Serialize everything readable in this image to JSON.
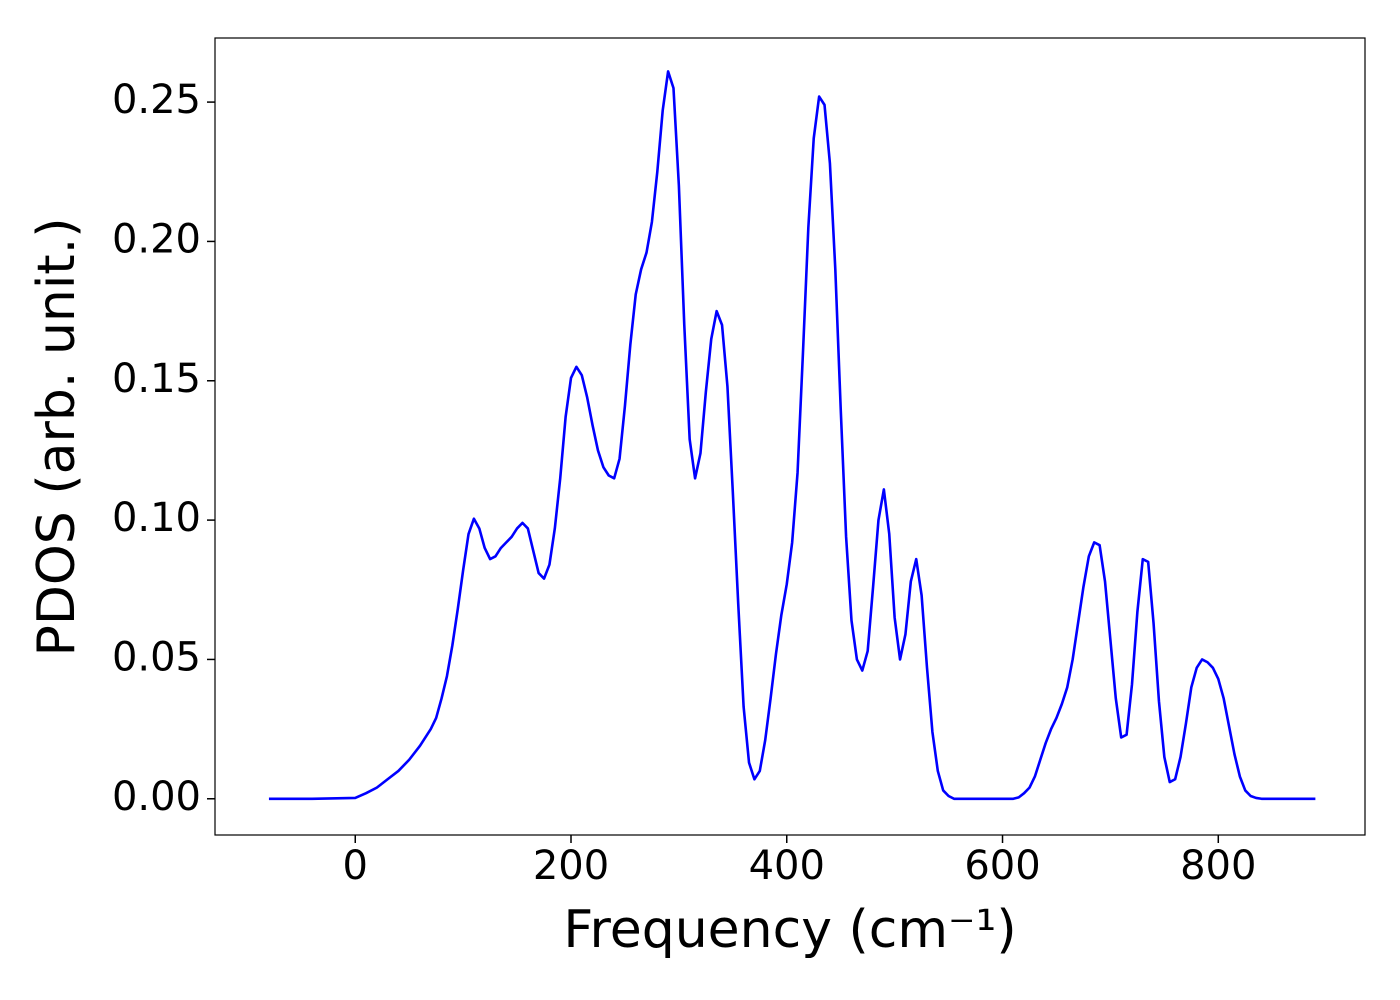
{
  "chart_data": {
    "type": "line",
    "x_label": "Frequency (cm⁻¹)",
    "y_label": "PDOS (arb. unit.)",
    "x": [
      -80,
      -40,
      0,
      10,
      20,
      30,
      40,
      50,
      60,
      70,
      75,
      80,
      85,
      90,
      95,
      100,
      105,
      110,
      115,
      120,
      125,
      130,
      135,
      140,
      145,
      150,
      155,
      160,
      165,
      170,
      175,
      180,
      185,
      190,
      195,
      200,
      205,
      210,
      215,
      220,
      225,
      230,
      235,
      240,
      245,
      250,
      255,
      260,
      265,
      270,
      275,
      280,
      285,
      290,
      295,
      300,
      305,
      310,
      315,
      320,
      325,
      330,
      335,
      340,
      345,
      350,
      355,
      360,
      365,
      370,
      375,
      380,
      385,
      390,
      395,
      400,
      405,
      410,
      415,
      420,
      425,
      430,
      435,
      440,
      445,
      450,
      455,
      460,
      465,
      470,
      475,
      480,
      485,
      490,
      495,
      500,
      505,
      510,
      515,
      520,
      525,
      530,
      535,
      540,
      545,
      550,
      555,
      580,
      610,
      615,
      620,
      625,
      630,
      635,
      640,
      645,
      650,
      655,
      660,
      665,
      670,
      675,
      680,
      685,
      690,
      695,
      700,
      705,
      710,
      715,
      720,
      725,
      730,
      735,
      740,
      745,
      750,
      755,
      760,
      765,
      770,
      775,
      780,
      785,
      790,
      795,
      800,
      805,
      810,
      815,
      820,
      825,
      830,
      835,
      840,
      890
    ],
    "series": [
      {
        "name": "PDOS",
        "color": "#0000ff",
        "values": [
          0,
          0,
          0.0003,
          0.002,
          0.004,
          0.007,
          0.01,
          0.014,
          0.019,
          0.025,
          0.029,
          0.036,
          0.044,
          0.055,
          0.068,
          0.082,
          0.095,
          0.1005,
          0.097,
          0.09,
          0.086,
          0.087,
          0.09,
          0.092,
          0.094,
          0.097,
          0.099,
          0.097,
          0.089,
          0.081,
          0.079,
          0.084,
          0.097,
          0.115,
          0.137,
          0.151,
          0.155,
          0.152,
          0.144,
          0.134,
          0.125,
          0.119,
          0.116,
          0.115,
          0.122,
          0.141,
          0.163,
          0.181,
          0.19,
          0.196,
          0.207,
          0.225,
          0.247,
          0.261,
          0.255,
          0.22,
          0.17,
          0.129,
          0.115,
          0.124,
          0.146,
          0.165,
          0.175,
          0.17,
          0.148,
          0.11,
          0.07,
          0.033,
          0.013,
          0.007,
          0.01,
          0.021,
          0.036,
          0.052,
          0.066,
          0.077,
          0.092,
          0.117,
          0.16,
          0.205,
          0.237,
          0.252,
          0.249,
          0.228,
          0.19,
          0.14,
          0.094,
          0.064,
          0.05,
          0.046,
          0.053,
          0.076,
          0.1,
          0.111,
          0.095,
          0.065,
          0.05,
          0.059,
          0.078,
          0.086,
          0.073,
          0.047,
          0.024,
          0.01,
          0.003,
          0.001,
          0,
          0,
          0,
          0.0005,
          0.002,
          0.004,
          0.008,
          0.014,
          0.02,
          0.025,
          0.029,
          0.034,
          0.04,
          0.05,
          0.063,
          0.076,
          0.087,
          0.092,
          0.091,
          0.078,
          0.057,
          0.036,
          0.022,
          0.023,
          0.041,
          0.067,
          0.086,
          0.085,
          0.063,
          0.035,
          0.015,
          0.006,
          0.007,
          0.015,
          0.027,
          0.04,
          0.047,
          0.05,
          0.049,
          0.047,
          0.043,
          0.036,
          0.026,
          0.016,
          0.008,
          0.003,
          0.001,
          0.0003,
          0,
          0
        ]
      }
    ],
    "xlim": [
      -130,
      936
    ],
    "xticks": [
      0,
      200,
      400,
      600,
      800
    ],
    "ylim": [
      -0.013,
      0.273
    ],
    "yticks": [
      {
        "value": 0,
        "label": "0.00"
      },
      {
        "value": 0.05,
        "label": "0.05"
      },
      {
        "value": 0.1,
        "label": "0.10"
      },
      {
        "value": 0.15,
        "label": "0.15"
      },
      {
        "value": 0.2,
        "label": "0.20"
      },
      {
        "value": 0.25,
        "label": "0.25"
      }
    ],
    "grid": false
  }
}
